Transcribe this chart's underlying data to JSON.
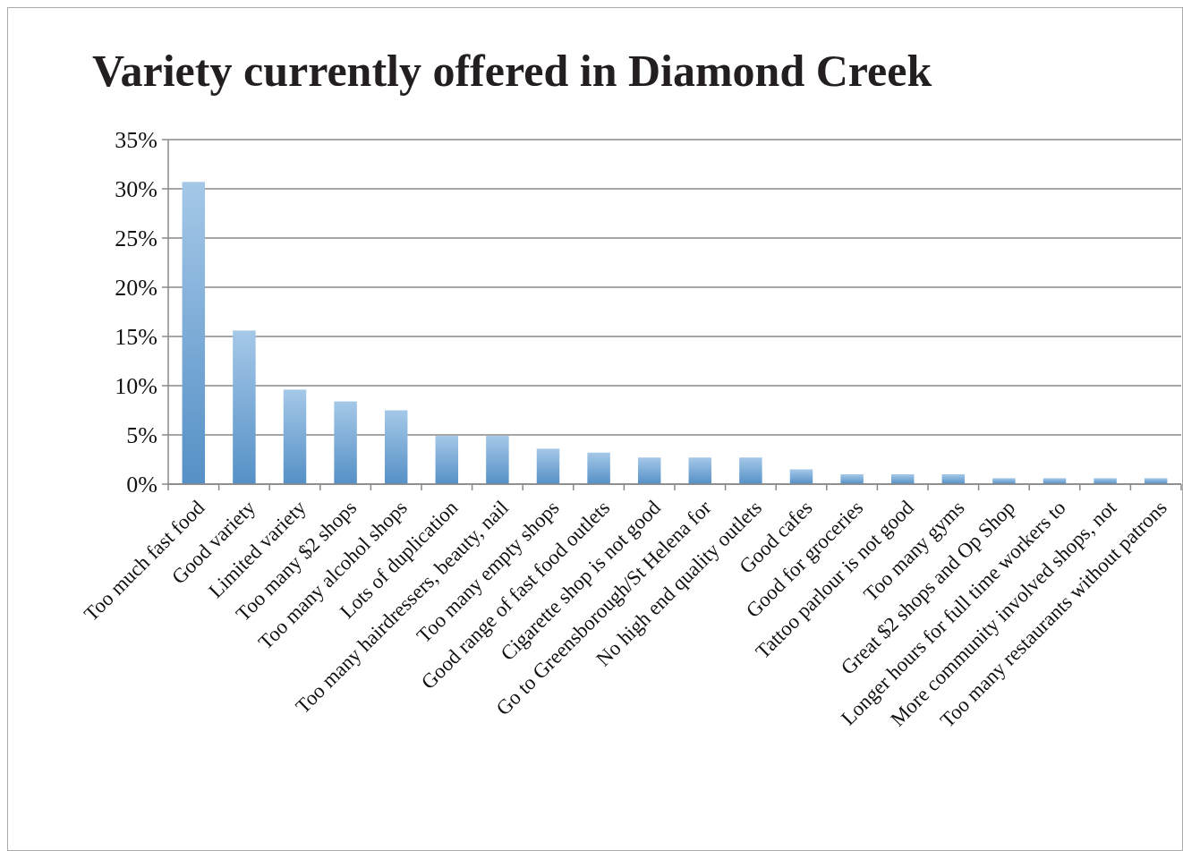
{
  "chart_data": {
    "type": "bar",
    "title": "Variety currently offered in Diamond Creek",
    "categories": [
      "Too much fast food",
      "Good variety",
      "Limited variety",
      "Too many $2 shops",
      "Too many alcohol shops",
      "Lots of duplication",
      "Too many hairdressers, beauty, nail",
      "Too many empty shops",
      "Good range of fast food outlets",
      "Cigarette shop is not good",
      "Go to Greensborough/St Helena for",
      "No high end quality outlets",
      "Good cafes",
      "Good for groceries",
      "Tattoo parlour is not good",
      "Too many gyms",
      "Great $2 shops and Op Shop",
      "Longer hours for full time workers to",
      "More community involved shops, not",
      "Too many restaurants without patrons"
    ],
    "values": [
      30.7,
      15.6,
      9.6,
      8.4,
      7.5,
      4.9,
      4.9,
      3.6,
      3.2,
      2.7,
      2.7,
      2.7,
      1.5,
      1.0,
      1.0,
      1.0,
      0.6,
      0.6,
      0.6,
      0.6
    ],
    "color": "#5b9bd5",
    "ylim": [
      0,
      35
    ],
    "yticks": [
      {
        "value": 0,
        "label": "0%"
      },
      {
        "value": 5,
        "label": "5%"
      },
      {
        "value": 10,
        "label": "10%"
      },
      {
        "value": 15,
        "label": "15%"
      },
      {
        "value": 20,
        "label": "20%"
      },
      {
        "value": 25,
        "label": "25%"
      },
      {
        "value": 30,
        "label": "30%"
      },
      {
        "value": 35,
        "label": "35%"
      }
    ],
    "grid": "y"
  }
}
